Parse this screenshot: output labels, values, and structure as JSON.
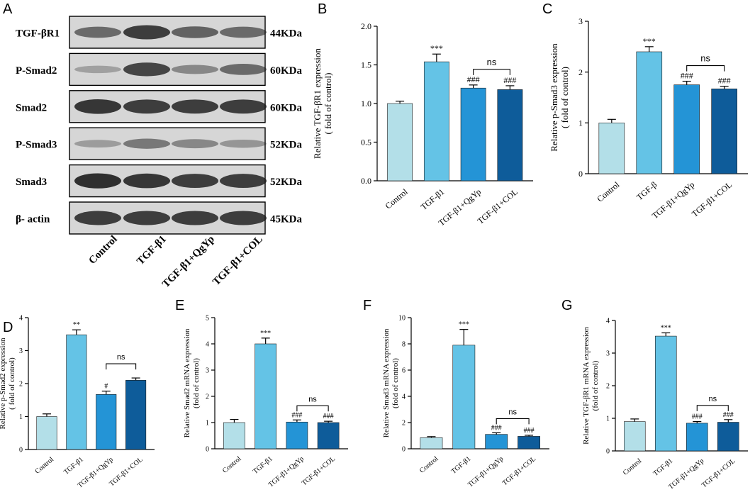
{
  "colors": {
    "control": "#b3dfe8",
    "tgf": "#64c3e6",
    "qgyp": "#2494d6",
    "col": "#0e5c9a",
    "axis": "#000000",
    "blot_bg": "#d6d6d6",
    "band": "#1e1e1e"
  },
  "blot": {
    "panel_label": "A",
    "rows": [
      {
        "name": "TGF-βR1",
        "kda": "44KDa",
        "intensity": [
          0.55,
          0.85,
          0.6,
          0.55
        ]
      },
      {
        "name": "P-Smad2",
        "kda": "60KDa",
        "intensity": [
          0.18,
          0.8,
          0.35,
          0.55
        ]
      },
      {
        "name": "Smad2",
        "kda": "60KDa",
        "intensity": [
          0.9,
          0.85,
          0.85,
          0.85
        ]
      },
      {
        "name": "P-Smad3",
        "kda": "52KDa",
        "intensity": [
          0.2,
          0.45,
          0.35,
          0.25
        ]
      },
      {
        "name": "Smad3",
        "kda": "52KDa",
        "intensity": [
          0.95,
          0.9,
          0.85,
          0.85
        ]
      },
      {
        "name": "β- actin",
        "kda": "45KDa",
        "intensity": [
          0.85,
          0.85,
          0.85,
          0.85
        ]
      }
    ],
    "lanes": [
      "Control",
      "TGF-β1",
      "TGF-β1+QgYp",
      "TGF-β1+COL"
    ]
  },
  "chart_data": [
    {
      "panel": "B",
      "type": "bar",
      "ylabel": [
        "Relative TGF-βR1 expression",
        "( fold of control)"
      ],
      "categories": [
        "Control",
        "TGF-β1",
        "TGF-β1+QgYp",
        "TGF-β1+COL"
      ],
      "values": [
        1.0,
        1.54,
        1.2,
        1.18
      ],
      "errors": [
        0.03,
        0.1,
        0.04,
        0.05
      ],
      "annotations": [
        "",
        "***",
        "###",
        "###"
      ],
      "ns": "ns",
      "ylim": [
        0,
        2.0
      ],
      "yticks": [
        "0.0",
        "0.5",
        "1.0",
        "1.5",
        "2.0"
      ]
    },
    {
      "panel": "C",
      "type": "bar",
      "ylabel": [
        "Relative p-Smad3 expression",
        "( fold of control)"
      ],
      "categories": [
        "Control",
        "TGF-β",
        "TGF-β1+QgYp",
        "TGF-β1+COL"
      ],
      "values": [
        1.0,
        2.4,
        1.75,
        1.67
      ],
      "errors": [
        0.07,
        0.1,
        0.07,
        0.05
      ],
      "annotations": [
        "",
        "***",
        "###",
        "###"
      ],
      "ns": "ns",
      "ylim": [
        0,
        3
      ],
      "yticks": [
        "0",
        "1",
        "2",
        "3"
      ]
    },
    {
      "panel": "D",
      "type": "bar",
      "ylabel": [
        "Relative p-Smad2 expression",
        "( fold of control)"
      ],
      "categories": [
        "Control",
        "TGF-β1",
        "TGF-β1+QgYp",
        "TGF-β1+COL"
      ],
      "values": [
        1.0,
        3.48,
        1.67,
        2.1
      ],
      "errors": [
        0.08,
        0.15,
        0.1,
        0.07
      ],
      "annotations": [
        "",
        "**",
        "#",
        ""
      ],
      "ns": "ns",
      "ylim": [
        0,
        4
      ],
      "yticks": [
        "0",
        "1",
        "2",
        "3",
        "4"
      ]
    },
    {
      "panel": "E",
      "type": "bar",
      "ylabel": [
        "Relative Smad2 mRNA expression",
        "(fold of control)"
      ],
      "categories": [
        "Control",
        "TGF-β1",
        "TGF-β1+QgYp",
        "TGF-β1+COL"
      ],
      "values": [
        1.0,
        4.0,
        1.02,
        1.0
      ],
      "errors": [
        0.12,
        0.22,
        0.08,
        0.05
      ],
      "annotations": [
        "",
        "***",
        "###",
        "###"
      ],
      "ns": "ns",
      "ylim": [
        0,
        5
      ],
      "yticks": [
        "0",
        "1",
        "2",
        "3",
        "4",
        "5"
      ]
    },
    {
      "panel": "F",
      "type": "bar",
      "ylabel": [
        "Relative Smad3 mRNA expression",
        "(fold of control)"
      ],
      "categories": [
        "Control",
        "TGF-β1",
        "TGF-β1+QgYp",
        "TGF-β1+COL"
      ],
      "values": [
        0.85,
        7.9,
        1.1,
        0.95
      ],
      "errors": [
        0.08,
        1.2,
        0.12,
        0.08
      ],
      "annotations": [
        "",
        "***",
        "###",
        "###"
      ],
      "ns": "ns",
      "ylim": [
        0,
        10
      ],
      "yticks": [
        "0",
        "2",
        "4",
        "6",
        "8",
        "10"
      ]
    },
    {
      "panel": "G",
      "type": "bar",
      "ylabel": [
        "Relative TGF-βR1 mRNA expression",
        "(fold of control)"
      ],
      "categories": [
        "Control",
        "TGF-β1",
        "TGF-β1+QgYp",
        "TGF-β1+COL"
      ],
      "values": [
        0.9,
        3.52,
        0.85,
        0.88
      ],
      "errors": [
        0.08,
        0.1,
        0.05,
        0.08
      ],
      "annotations": [
        "",
        "***",
        "###",
        "###"
      ],
      "ns": "ns",
      "ylim": [
        0,
        4
      ],
      "yticks": [
        "0",
        "1",
        "2",
        "3",
        "4"
      ]
    }
  ]
}
